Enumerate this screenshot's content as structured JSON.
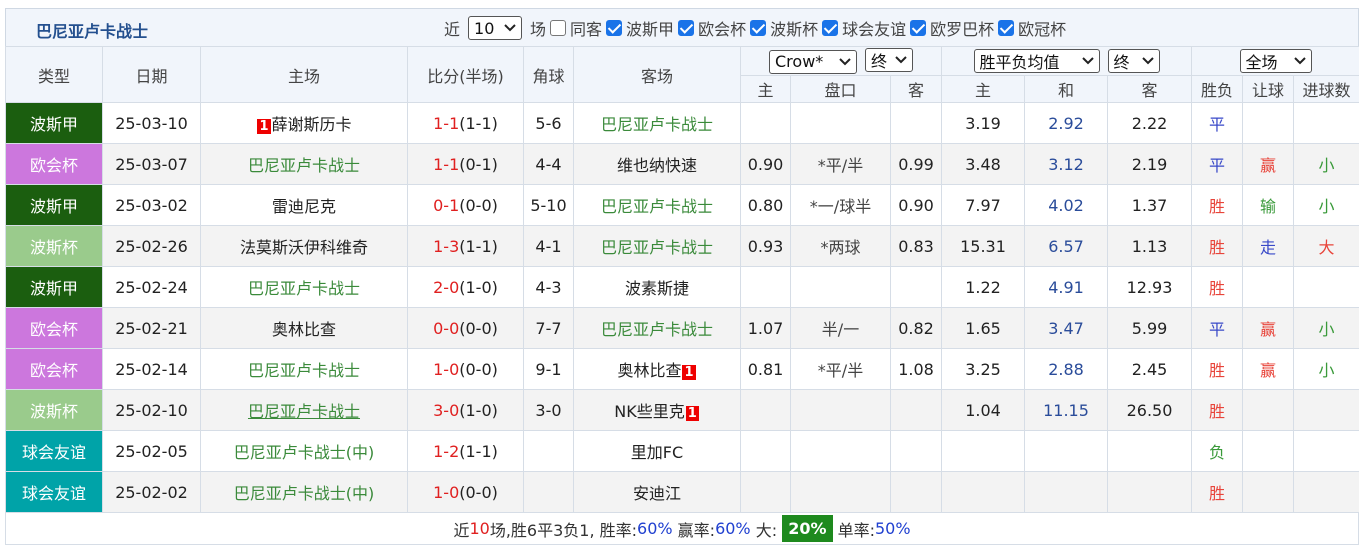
{
  "header": {
    "title": "巴尼亚卢卡战士",
    "recent_prefix": "近",
    "recent_count": "10",
    "recent_suffix": "场",
    "filters": [
      {
        "label": "同客",
        "checked": false
      },
      {
        "label": "波斯甲",
        "checked": true
      },
      {
        "label": "欧会杯",
        "checked": true
      },
      {
        "label": "波斯杯",
        "checked": true
      },
      {
        "label": "球会友谊",
        "checked": true
      },
      {
        "label": "欧罗巴杯",
        "checked": true
      },
      {
        "label": "欧冠杯",
        "checked": true
      }
    ]
  },
  "table": {
    "columns": [
      "类型",
      "日期",
      "主场",
      "比分(半场)",
      "角球",
      "客场"
    ],
    "selects": [
      "Crow*",
      "终",
      "胜平负均值",
      "终",
      "全场"
    ],
    "subheaders": [
      "主",
      "盘口",
      "客",
      "主",
      "和",
      "客",
      "胜负",
      "让球",
      "进球数"
    ],
    "rows": [
      {
        "league": "波斯甲",
        "league_color": "#1b5e0f",
        "date": "25-03-10",
        "home": "薛谢斯历卡",
        "home_card": "1",
        "score": "1-1",
        "half": "(1-1)",
        "corner": "5-6",
        "away": "巴尼亚卢卡战士",
        "win": "3.19",
        "draw": "2.92",
        "lose": "2.22",
        "result": "平"
      },
      {
        "league": "欧会杯",
        "league_color": "#cc77dd",
        "date": "25-03-07",
        "home": "巴尼亚卢卡战士",
        "score": "1-1",
        "half": "(0-1)",
        "corner": "4-4",
        "away": "维也纳快速",
        "odds_home": "0.90",
        "line": "*平/半",
        "odds_away": "0.99",
        "win": "3.48",
        "draw": "3.12",
        "lose": "2.19",
        "result": "平",
        "handicap": "赢",
        "goals": "小"
      },
      {
        "league": "波斯甲",
        "league_color": "#1b5e0f",
        "date": "25-03-02",
        "home": "雷迪尼克",
        "score": "0-1",
        "half": "(0-0)",
        "corner": "5-10",
        "away": "巴尼亚卢卡战士",
        "odds_home": "0.80",
        "line": "*一/球半",
        "odds_away": "0.90",
        "win": "7.97",
        "draw": "4.02",
        "lose": "1.37",
        "result": "胜",
        "handicap": "输",
        "goals": "小"
      },
      {
        "league": "波斯杯",
        "league_color": "#9acb8c",
        "date": "25-02-26",
        "home": "法莫斯沃伊科维奇",
        "score": "1-3",
        "half": "(1-1)",
        "corner": "4-1",
        "away": "巴尼亚卢卡战士",
        "odds_home": "0.93",
        "line": "*两球",
        "odds_away": "0.83",
        "win": "15.31",
        "draw": "6.57",
        "lose": "1.13",
        "result": "胜",
        "handicap": "走",
        "goals": "大"
      },
      {
        "league": "波斯甲",
        "league_color": "#1b5e0f",
        "date": "25-02-24",
        "home": "巴尼亚卢卡战士",
        "score": "2-0",
        "half": "(1-0)",
        "corner": "4-3",
        "away": "波素斯捷",
        "win": "1.22",
        "draw": "4.91",
        "lose": "12.93",
        "result": "胜"
      },
      {
        "league": "欧会杯",
        "league_color": "#cc77dd",
        "date": "25-02-21",
        "home": "奥林比查",
        "score": "0-0",
        "half": "(0-0)",
        "corner": "7-7",
        "away": "巴尼亚卢卡战士",
        "odds_home": "1.07",
        "line": "半/一",
        "odds_away": "0.82",
        "win": "1.65",
        "draw": "3.47",
        "lose": "5.99",
        "result": "平",
        "handicap": "赢",
        "goals": "小"
      },
      {
        "league": "欧会杯",
        "league_color": "#cc77dd",
        "date": "25-02-14",
        "home": "巴尼亚卢卡战士",
        "score": "1-0",
        "half": "(0-0)",
        "corner": "9-1",
        "away": "奥林比查",
        "away_card": "1",
        "odds_home": "0.81",
        "line": "*平/半",
        "odds_away": "1.08",
        "win": "3.25",
        "draw": "2.88",
        "lose": "2.45",
        "result": "胜",
        "handicap": "赢",
        "goals": "小"
      },
      {
        "league": "波斯杯",
        "league_color": "#9acb8c",
        "date": "25-02-10",
        "home": "巴尼亚卢卡战士",
        "home_underline": true,
        "score": "3-0",
        "half": "(1-0)",
        "corner": "3-0",
        "away": "NK些里克",
        "away_card": "1",
        "win": "1.04",
        "draw": "11.15",
        "lose": "26.50",
        "result": "胜"
      },
      {
        "league": "球会友谊",
        "league_color": "#00a3a8",
        "date": "25-02-05",
        "home": "巴尼亚卢卡战士(中)",
        "score": "1-2",
        "half": "(1-1)",
        "away": "里加FC",
        "result": "负"
      },
      {
        "league": "球会友谊",
        "league_color": "#00a3a8",
        "date": "25-02-02",
        "home": "巴尼亚卢卡战士(中)",
        "score": "1-0",
        "half": "(0-0)",
        "away": "安迪江",
        "result": "胜"
      }
    ]
  },
  "tone_colors": {
    "胜": "#e8443a",
    "平": "#3848c8",
    "负": "#3a9a3a",
    "赢": "#e8443a",
    "输": "#3a9a3a",
    "走": "#3848c8",
    "大": "#e8443a",
    "小": "#3a9a3a"
  },
  "footer": [
    {
      "text": "近"
    },
    {
      "text": "10",
      "color": "#e02020"
    },
    {
      "text": "场,胜6平3负1, 胜率:"
    },
    {
      "text": "60%",
      "color": "#2040d0"
    },
    {
      "text": " 赢率:"
    },
    {
      "text": "60%",
      "color": "#2040d0"
    },
    {
      "text": " 大: "
    },
    {
      "text": "20%",
      "bg": "#1e8a1e"
    },
    {
      "text": " 单率:"
    },
    {
      "text": "50%",
      "color": "#2040d0"
    }
  ]
}
